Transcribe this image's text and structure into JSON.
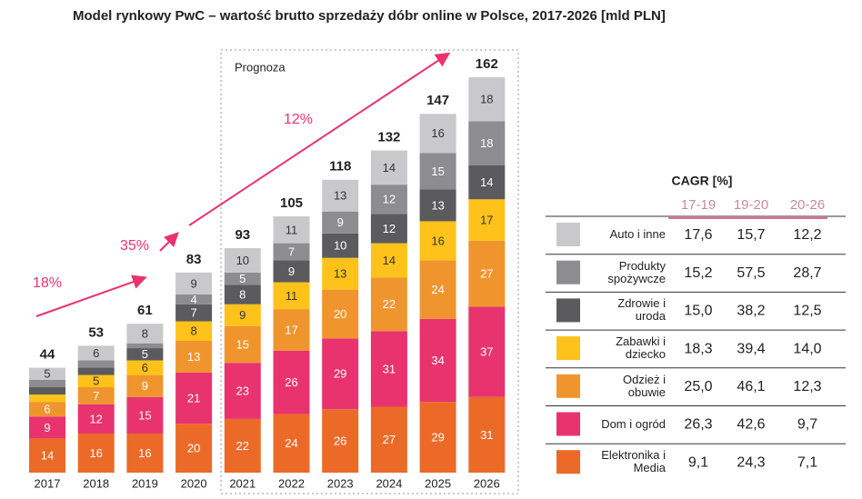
{
  "chart_data": {
    "type": "stacked_bar",
    "title": "Model rynkowy PwC – wartość brutto sprzedaży dóbr online w Polsce, 2017-2026 [mld PLN]",
    "categories": [
      "2017",
      "2018",
      "2019",
      "2020",
      "2021",
      "2022",
      "2023",
      "2024",
      "2025",
      "2026"
    ],
    "totals": [
      44,
      53,
      61,
      83,
      93,
      105,
      118,
      132,
      147,
      162
    ],
    "series": [
      {
        "name": "Elektronika i Media",
        "color": "#ec6a28",
        "values": [
          14,
          16,
          16,
          20,
          22,
          24,
          26,
          27,
          29,
          31
        ],
        "cagr": [
          "9,1",
          "24,3",
          "7,1"
        ]
      },
      {
        "name": "Dom i ogród",
        "color": "#e8336f",
        "values": [
          9,
          12,
          15,
          21,
          23,
          26,
          29,
          31,
          34,
          37
        ],
        "cagr": [
          "26,3",
          "42,6",
          "9,7"
        ]
      },
      {
        "name": "Odzież i obuwie",
        "color": "#f0952e",
        "values": [
          6,
          7,
          9,
          13,
          15,
          17,
          20,
          22,
          24,
          27
        ],
        "cagr": [
          "25,0",
          "46,1",
          "12,3"
        ]
      },
      {
        "name": "Zabawki i dziecko",
        "color": "#ffc21a",
        "values": [
          3,
          5,
          6,
          8,
          9,
          11,
          13,
          14,
          16,
          17
        ],
        "cagr": [
          "18,3",
          "39,4",
          "14,0"
        ]
      },
      {
        "name": "Zdrowie i uroda",
        "color": "#5b5b5d",
        "values": [
          3,
          3,
          5,
          7,
          8,
          9,
          10,
          12,
          13,
          14
        ],
        "cagr": [
          "15,0",
          "38,2",
          "12,5"
        ]
      },
      {
        "name": "Produkty spożywcze",
        "color": "#8d8d8f",
        "values": [
          3,
          3,
          2,
          4,
          5,
          7,
          9,
          12,
          15,
          18
        ],
        "cagr": [
          "15,2",
          "57,5",
          "28,7"
        ]
      },
      {
        "name": "Auto i inne",
        "color": "#c9c9cb",
        "values": [
          5,
          6,
          8,
          9,
          10,
          11,
          13,
          14,
          16,
          18
        ],
        "cagr": [
          "17,6",
          "15,7",
          "12,2"
        ]
      }
    ],
    "forecast_label": "Prognoza",
    "growth_labels": [
      "18%",
      "35%",
      "12%"
    ],
    "cagr_title": "CAGR [%]",
    "cagr_periods": [
      "17-19",
      "19-20",
      "20-26"
    ]
  }
}
